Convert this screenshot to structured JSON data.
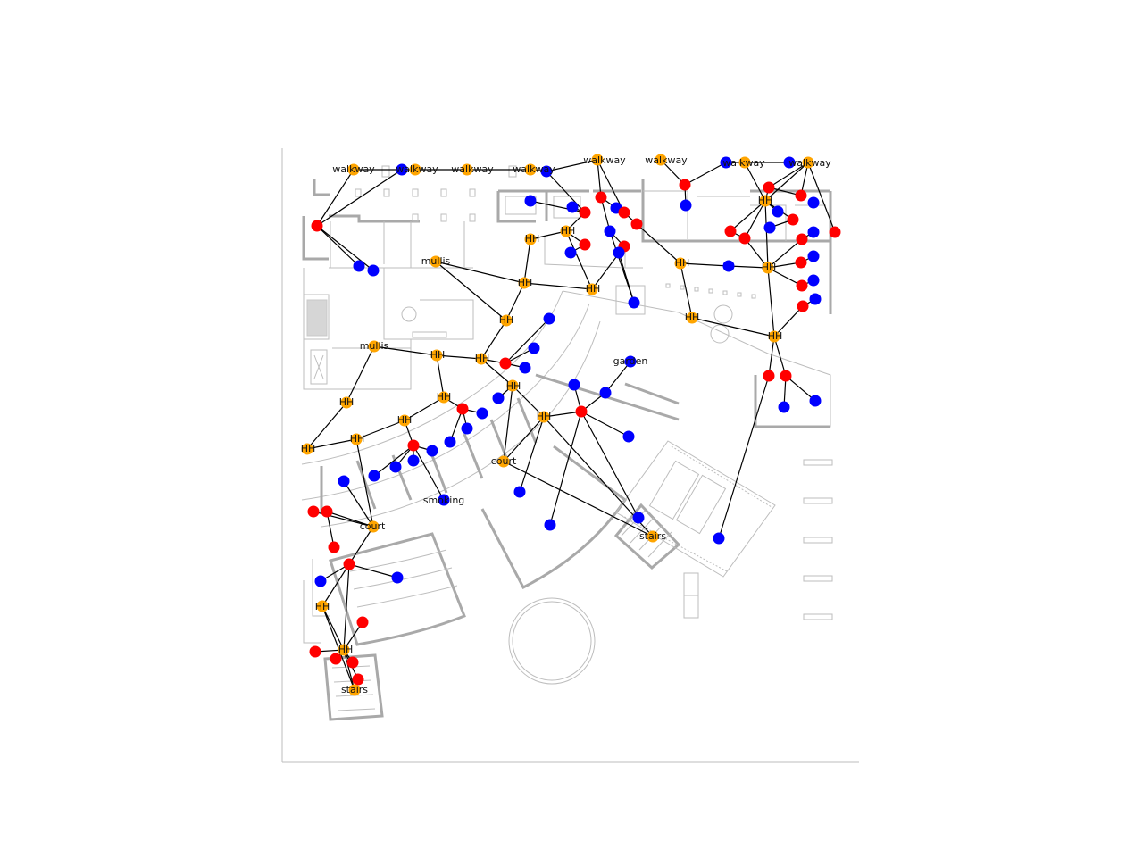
{
  "colors": {
    "room": "#ff0000",
    "corridor": "#ffa500",
    "door": "#0000ff",
    "edge": "#000000",
    "floorplan": "#bdbdbd"
  },
  "labels": [
    "walkway",
    "walkway",
    "walkway",
    "walkway",
    "walkway",
    "walkway",
    "walkway",
    "walkway",
    "mullis",
    "mullis",
    "garden",
    "court",
    "court",
    "smoking",
    "stairs",
    "stairs",
    "HH"
  ]
}
